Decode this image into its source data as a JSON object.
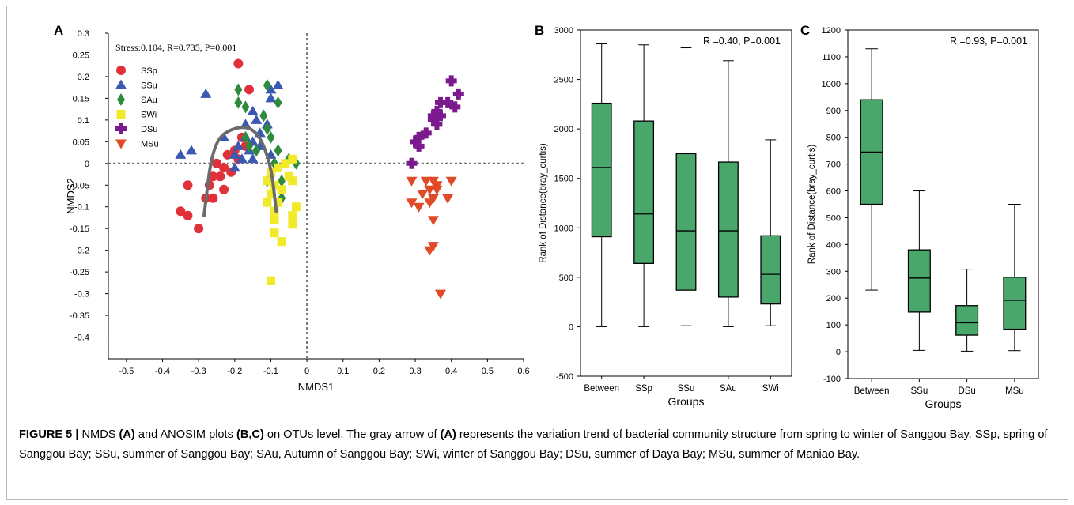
{
  "chart_data": [
    {
      "panel": "A",
      "type": "scatter",
      "annotation": "Stress:0.104, R=0.735, P=0.001",
      "xlabel": "NMDS1",
      "ylabel": "NMDS2",
      "xlim": [
        -0.55,
        0.6
      ],
      "ylim": [
        -0.45,
        0.3
      ],
      "xticks": [
        "-0.5",
        "-0.4",
        "-0.3",
        "-0.2",
        "-0.1",
        "0",
        "0.1",
        "0.2",
        "0.3",
        "0.4",
        "0.5",
        "0.6"
      ],
      "yticks": [
        "0.3",
        "0.25",
        "0.2",
        "0.15",
        "0.1",
        "0.05",
        "0",
        "-0.05",
        "-0.1",
        "-0.15",
        "-0.2",
        "-0.25",
        "-0.3",
        "-0.35",
        "-0.4"
      ],
      "legend_position": "top-left",
      "series": [
        {
          "name": "SSp",
          "marker": "circle",
          "color": "#e0303a",
          "points": [
            [
              -0.19,
              0.23
            ],
            [
              -0.16,
              0.17
            ],
            [
              -0.18,
              0.06
            ],
            [
              -0.17,
              0.04
            ],
            [
              -0.2,
              0.03
            ],
            [
              -0.19,
              0.01
            ],
            [
              -0.22,
              0.02
            ],
            [
              -0.25,
              0.0
            ],
            [
              -0.23,
              -0.01
            ],
            [
              -0.21,
              -0.02
            ],
            [
              -0.24,
              -0.03
            ],
            [
              -0.26,
              -0.03
            ],
            [
              -0.27,
              -0.05
            ],
            [
              -0.33,
              -0.05
            ],
            [
              -0.23,
              -0.06
            ],
            [
              -0.28,
              -0.08
            ],
            [
              -0.26,
              -0.08
            ],
            [
              -0.35,
              -0.11
            ],
            [
              -0.33,
              -0.12
            ],
            [
              -0.3,
              -0.15
            ]
          ]
        },
        {
          "name": "SSu",
          "marker": "triangle",
          "color": "#3a59b0",
          "points": [
            [
              -0.28,
              0.16
            ],
            [
              -0.08,
              0.18
            ],
            [
              -0.1,
              0.17
            ],
            [
              -0.1,
              0.15
            ],
            [
              -0.15,
              0.12
            ],
            [
              -0.14,
              0.1
            ],
            [
              -0.17,
              0.09
            ],
            [
              -0.11,
              0.09
            ],
            [
              -0.13,
              0.07
            ],
            [
              -0.15,
              0.05
            ],
            [
              -0.17,
              0.06
            ],
            [
              -0.13,
              0.04
            ],
            [
              -0.19,
              0.04
            ],
            [
              -0.23,
              0.06
            ],
            [
              -0.35,
              0.02
            ],
            [
              -0.32,
              0.03
            ],
            [
              -0.16,
              0.03
            ],
            [
              -0.2,
              0.02
            ],
            [
              -0.18,
              0.01
            ],
            [
              -0.15,
              0.01
            ],
            [
              -0.1,
              0.02
            ],
            [
              -0.2,
              -0.01
            ]
          ]
        },
        {
          "name": "SAu",
          "marker": "diamond",
          "color": "#2e8b3e",
          "points": [
            [
              -0.19,
              0.17
            ],
            [
              -0.19,
              0.14
            ],
            [
              -0.17,
              0.13
            ],
            [
              -0.11,
              0.18
            ],
            [
              -0.08,
              0.14
            ],
            [
              -0.12,
              0.11
            ],
            [
              -0.11,
              0.08
            ],
            [
              -0.1,
              0.06
            ],
            [
              -0.17,
              0.06
            ],
            [
              -0.16,
              0.04
            ],
            [
              -0.14,
              0.03
            ],
            [
              -0.08,
              0.03
            ],
            [
              -0.09,
              0.0
            ],
            [
              -0.05,
              0.01
            ],
            [
              -0.03,
              0.0
            ],
            [
              -0.07,
              -0.04
            ],
            [
              -0.1,
              -0.03
            ],
            [
              -0.11,
              -0.04
            ],
            [
              -0.07,
              -0.08
            ]
          ]
        },
        {
          "name": "SWi",
          "marker": "square",
          "color": "#f0ea2a",
          "points": [
            [
              -0.04,
              0.01
            ],
            [
              -0.06,
              0.0
            ],
            [
              -0.1,
              -0.02
            ],
            [
              -0.08,
              -0.01
            ],
            [
              -0.05,
              -0.03
            ],
            [
              -0.11,
              -0.04
            ],
            [
              -0.09,
              -0.05
            ],
            [
              -0.07,
              -0.06
            ],
            [
              -0.04,
              -0.04
            ],
            [
              -0.1,
              -0.07
            ],
            [
              -0.08,
              -0.09
            ],
            [
              -0.11,
              -0.09
            ],
            [
              -0.09,
              -0.11
            ],
            [
              -0.03,
              -0.1
            ],
            [
              -0.04,
              -0.12
            ],
            [
              -0.09,
              -0.13
            ],
            [
              -0.04,
              -0.14
            ],
            [
              -0.09,
              -0.16
            ],
            [
              -0.07,
              -0.18
            ],
            [
              -0.1,
              -0.27
            ]
          ]
        },
        {
          "name": "DSu",
          "marker": "plus",
          "color": "#7a1a8c",
          "points": [
            [
              0.4,
              0.19
            ],
            [
              0.42,
              0.16
            ],
            [
              0.39,
              0.14
            ],
            [
              0.37,
              0.14
            ],
            [
              0.41,
              0.13
            ],
            [
              0.36,
              0.12
            ],
            [
              0.35,
              0.11
            ],
            [
              0.37,
              0.11
            ],
            [
              0.35,
              0.1
            ],
            [
              0.36,
              0.09
            ],
            [
              0.33,
              0.07
            ],
            [
              0.31,
              0.06
            ],
            [
              0.3,
              0.05
            ],
            [
              0.31,
              0.04
            ],
            [
              0.29,
              0.0
            ]
          ]
        },
        {
          "name": "MSu",
          "marker": "triangle-down",
          "color": "#e04a26",
          "points": [
            [
              0.29,
              -0.04
            ],
            [
              0.33,
              -0.04
            ],
            [
              0.35,
              -0.04
            ],
            [
              0.36,
              -0.05
            ],
            [
              0.4,
              -0.04
            ],
            [
              0.34,
              -0.06
            ],
            [
              0.36,
              -0.06
            ],
            [
              0.32,
              -0.07
            ],
            [
              0.35,
              -0.08
            ],
            [
              0.39,
              -0.08
            ],
            [
              0.29,
              -0.09
            ],
            [
              0.34,
              -0.09
            ],
            [
              0.31,
              -0.1
            ],
            [
              0.35,
              -0.13
            ],
            [
              0.35,
              -0.19
            ],
            [
              0.34,
              -0.2
            ],
            [
              0.37,
              -0.3
            ]
          ]
        }
      ],
      "trend_arrow": {
        "color": "#6b6b6b",
        "points": [
          [
            -0.285,
            -0.12
          ],
          [
            -0.26,
            0.05
          ],
          [
            -0.2,
            0.085
          ],
          [
            -0.14,
            0.08
          ],
          [
            -0.1,
            0.0
          ],
          [
            -0.085,
            -0.11
          ]
        ]
      }
    },
    {
      "panel": "B",
      "type": "box",
      "annotation": "R =0.40, P=0.001",
      "xlabel": "Groups",
      "ylabel": "Rank of Distance(bray_curtis)",
      "ylim": [
        -500,
        3000
      ],
      "yticks": [
        "3000",
        "2500",
        "2000",
        "1500",
        "1000",
        "500",
        "0",
        "-500"
      ],
      "box_color": "#4aa76b",
      "categories": [
        "Between",
        "SSp",
        "SSu",
        "SAu",
        "SWi"
      ],
      "boxes": [
        {
          "min": 0,
          "q1": 910,
          "median": 1610,
          "q3": 2260,
          "max": 2860
        },
        {
          "min": 0,
          "q1": 640,
          "median": 1140,
          "q3": 2080,
          "max": 2850
        },
        {
          "min": 10,
          "q1": 370,
          "median": 970,
          "q3": 1750,
          "max": 2820
        },
        {
          "min": 0,
          "q1": 300,
          "median": 970,
          "q3": 1665,
          "max": 2690
        },
        {
          "min": 10,
          "q1": 230,
          "median": 530,
          "q3": 920,
          "max": 1890
        }
      ]
    },
    {
      "panel": "C",
      "type": "box",
      "annotation": "R =0.93, P=0.001",
      "xlabel": "Groups",
      "ylabel": "Rank of Distance(bray_curtis)",
      "ylim": [
        -100,
        1200
      ],
      "yticks": [
        "1200",
        "1100",
        "1000",
        "900",
        "800",
        "700",
        "600",
        "500",
        "400",
        "300",
        "200",
        "100",
        "0",
        "-100"
      ],
      "box_color": "#4aa76b",
      "categories": [
        "Between",
        "SSu",
        "DSu",
        "MSu"
      ],
      "boxes": [
        {
          "min": 230,
          "q1": 550,
          "median": 745,
          "q3": 940,
          "max": 1130
        },
        {
          "min": 5,
          "q1": 148,
          "median": 275,
          "q3": 380,
          "max": 600
        },
        {
          "min": 2,
          "q1": 62,
          "median": 108,
          "q3": 172,
          "max": 308
        },
        {
          "min": 4,
          "q1": 84,
          "median": 192,
          "q3": 278,
          "max": 550
        }
      ]
    }
  ],
  "caption": {
    "label": "FIGURE 5 |",
    "segments": [
      {
        "text": " NMDS ",
        "bold": false
      },
      {
        "text": "(A)",
        "bold": true
      },
      {
        "text": " and ANOSIM plots ",
        "bold": false
      },
      {
        "text": "(B,C)",
        "bold": true
      },
      {
        "text": " on OTUs level. The gray arrow of ",
        "bold": false
      },
      {
        "text": "(A)",
        "bold": true
      },
      {
        "text": " represents the variation trend of bacterial community structure from spring to winter of Sanggou Bay. SSp, spring of Sanggou Bay; SSu, summer of Sanggou Bay; SAu, Autumn of Sanggou Bay; SWi, winter of Sanggou Bay; DSu, summer of Daya Bay; MSu, summer of Maniao Bay.",
        "bold": false
      }
    ]
  }
}
